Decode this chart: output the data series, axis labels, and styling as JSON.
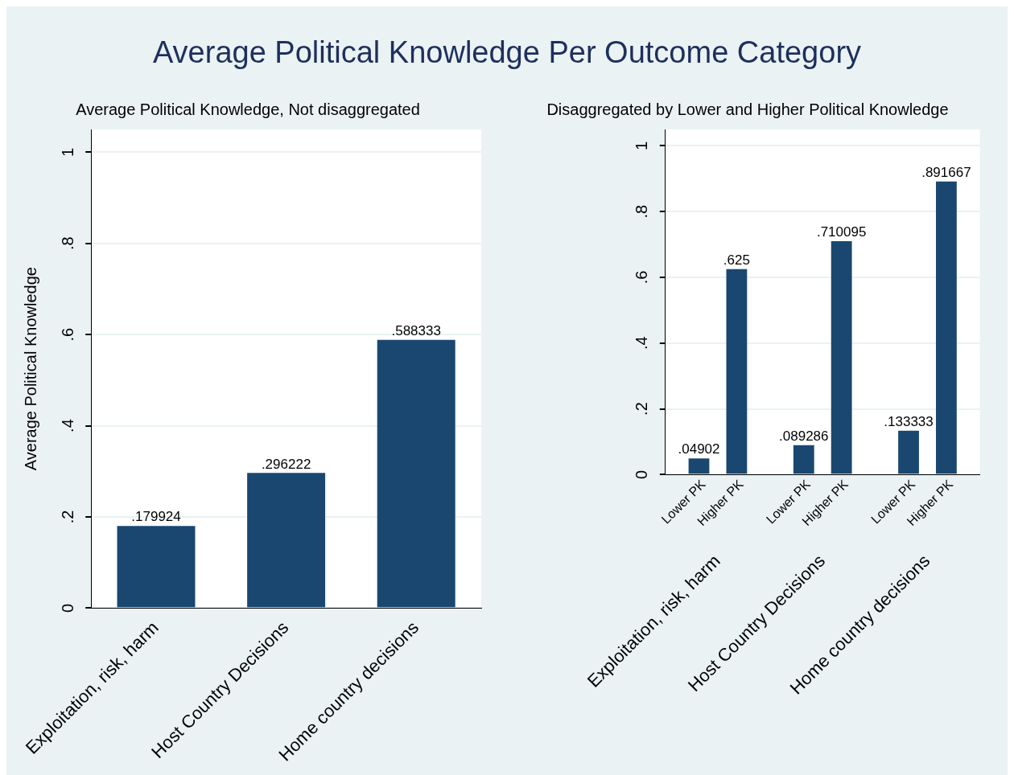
{
  "chart_data": [
    {
      "type": "bar",
      "title": "Average Political Knowledge Per Outcome Category",
      "subtitle": "Average Political Knowledge, Not disaggregated",
      "ylabel": "Average Political Knowledge",
      "categories": [
        "Exploitation, risk, harm",
        "Host Country Decisions",
        "Home country decisions"
      ],
      "values": [
        0.179924,
        0.296222,
        0.588333
      ],
      "value_labels": [
        ".179924",
        ".296222",
        ".588333"
      ],
      "color": "#1a476f",
      "ylim": [
        0,
        1.05
      ],
      "yticks": [
        {
          "value": 0,
          "label": "0"
        },
        {
          "value": 0.2,
          "label": ".2"
        },
        {
          "value": 0.4,
          "label": ".4"
        },
        {
          "value": 0.6,
          "label": ".6"
        },
        {
          "value": 0.8,
          "label": ".8"
        },
        {
          "value": 1,
          "label": "1"
        }
      ],
      "grid": "y"
    },
    {
      "type": "bar",
      "subtitle": "Disaggregated by Lower and Higher Political Knowledge",
      "categories": [
        "Exploitation, risk, harm",
        "Host Country Decisions",
        "Home country decisions"
      ],
      "series": [
        {
          "name": "Lower PK",
          "color": "#1a476f",
          "values": [
            0.04902,
            0.089286,
            0.133333
          ],
          "value_labels": [
            ".04902",
            ".089286",
            ".133333"
          ]
        },
        {
          "name": "Higher PK",
          "color": "#1a476f",
          "values": [
            0.625,
            0.710095,
            0.891667
          ],
          "value_labels": [
            ".625",
            ".710095",
            ".891667"
          ]
        }
      ],
      "ylim": [
        0,
        1.05
      ],
      "yticks": [
        0,
        {
          "value": 0.2,
          "label": ".2"
        },
        {
          "value": 0.4,
          "label": ".4"
        },
        {
          "value": 0.6,
          "label": ".6"
        },
        {
          "value": 0.8,
          "label": ".8"
        },
        1
      ],
      "grid": "y"
    }
  ]
}
